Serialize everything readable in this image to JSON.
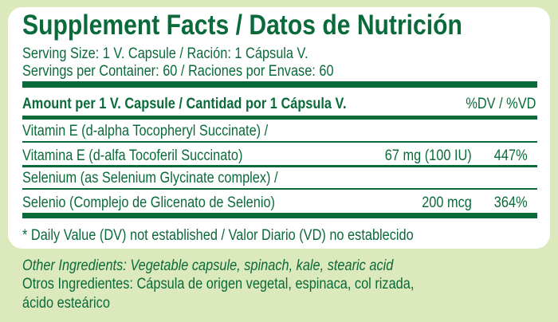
{
  "title": "Supplement Facts / Datos de Nutrición",
  "serving_size": "Serving Size: 1 V. Capsule / Ración: 1 Cápsula V.",
  "servings_per_container": "Servings per Container: 60 / Raciones por Envase: 60",
  "header": {
    "amount": "Amount per 1 V. Capsule / Cantidad por 1 Cápsula V.",
    "dv": "%DV / %VD"
  },
  "rows": [
    {
      "name_en": "Vitamin E (d-alpha Tocopheryl Succinate) /",
      "name_es": "Vitamina E (d-alfa Tocoferil Succinato)",
      "amount": "67 mg (100 IU)",
      "dv": "447%"
    },
    {
      "name_en": "Selenium (as Selenium Glycinate complex) /",
      "name_es": "Selenio (Complejo de Glicenato de Selenio)",
      "amount": "200 mcg",
      "dv": "364%"
    }
  ],
  "footnote": "* Daily Value (DV) not established / Valor Diario (VD) no establecido",
  "other_ingredients_en": "Other Ingredients: Vegetable capsule, spinach, kale, stearic acid",
  "other_ingredients_es_1": "Otros Ingredientes: Cápsula de origen vegetal, espinaca, col rizada,",
  "other_ingredients_es_2": "ácido esteárico",
  "colors": {
    "brand_green": "#0b6a3a",
    "background": "#dbe9bd",
    "panel": "#ffffff"
  }
}
